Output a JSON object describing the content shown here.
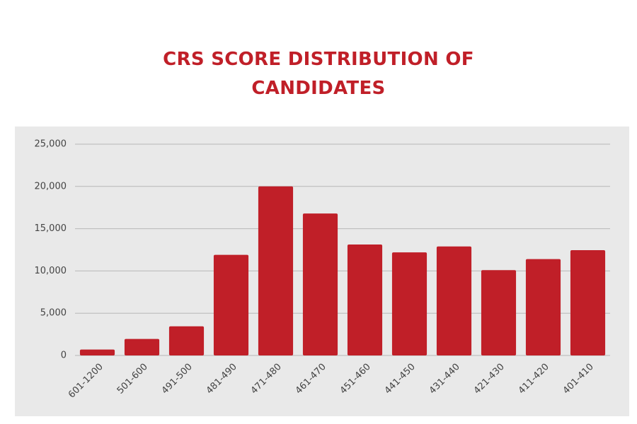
{
  "chart_data": {
    "type": "bar",
    "title": "CRS SCORE DISTRIBUTION OF CANDIDATES",
    "categories": [
      "601-1200",
      "501-600",
      "491-500",
      "481-490",
      "471-480",
      "461-470",
      "451-460",
      "441-450",
      "431-440",
      "421-430",
      "411-420",
      "401-410"
    ],
    "values": [
      700,
      1950,
      3450,
      11900,
      20000,
      16800,
      13130,
      12200,
      12900,
      10100,
      11400,
      12460
    ],
    "color": "#c01f28",
    "ylim": [
      0,
      25000
    ],
    "yticks": [
      0,
      {
        "value": 5000,
        "label": "5,000"
      },
      {
        "value": 10000,
        "label": "10,000"
      },
      {
        "value": 15000,
        "label": "15,000"
      },
      {
        "value": 20000,
        "label": "20,000"
      },
      {
        "value": 25000,
        "label": "25,000"
      }
    ],
    "grid": true
  }
}
